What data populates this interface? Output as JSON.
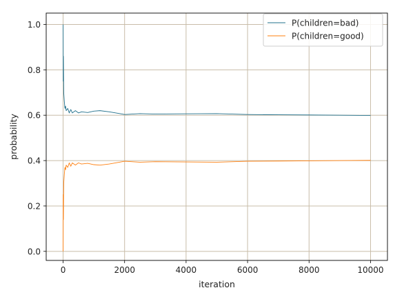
{
  "chart_data": {
    "type": "line",
    "xlabel": "iteration",
    "ylabel": "probability",
    "xlim": [
      -550,
      10550
    ],
    "ylim": [
      -0.04,
      1.05
    ],
    "x_ticks": [
      0,
      2000,
      4000,
      6000,
      8000,
      10000
    ],
    "x_tick_labels": [
      "0",
      "2000",
      "4000",
      "6000",
      "8000",
      "10000"
    ],
    "y_ticks": [
      0.0,
      0.2,
      0.4,
      0.6,
      0.8,
      1.0
    ],
    "y_tick_labels": [
      "0.0",
      "0.2",
      "0.4",
      "0.6",
      "0.8",
      "1.0"
    ],
    "grid": true,
    "legend_position": "top-right",
    "series": [
      {
        "name": "P(children=bad)",
        "color": "#1f6f8b",
        "points": [
          [
            0,
            1.0
          ],
          [
            5,
            0.75
          ],
          [
            10,
            0.86
          ],
          [
            20,
            0.7
          ],
          [
            40,
            0.66
          ],
          [
            60,
            0.63
          ],
          [
            80,
            0.64
          ],
          [
            100,
            0.62
          ],
          [
            150,
            0.63
          ],
          [
            200,
            0.61
          ],
          [
            250,
            0.625
          ],
          [
            300,
            0.61
          ],
          [
            400,
            0.62
          ],
          [
            500,
            0.61
          ],
          [
            600,
            0.615
          ],
          [
            800,
            0.612
          ],
          [
            1000,
            0.618
          ],
          [
            1200,
            0.62
          ],
          [
            1500,
            0.615
          ],
          [
            1800,
            0.608
          ],
          [
            2000,
            0.603
          ],
          [
            2500,
            0.607
          ],
          [
            3000,
            0.605
          ],
          [
            4000,
            0.606
          ],
          [
            5000,
            0.607
          ],
          [
            6000,
            0.603
          ],
          [
            7000,
            0.602
          ],
          [
            8000,
            0.601
          ],
          [
            9000,
            0.6
          ],
          [
            10000,
            0.599
          ]
        ]
      },
      {
        "name": "P(children=good)",
        "color": "#ff7f0e",
        "points": [
          [
            0,
            0.0
          ],
          [
            5,
            0.25
          ],
          [
            10,
            0.14
          ],
          [
            20,
            0.3
          ],
          [
            40,
            0.34
          ],
          [
            60,
            0.37
          ],
          [
            80,
            0.36
          ],
          [
            100,
            0.38
          ],
          [
            150,
            0.37
          ],
          [
            200,
            0.39
          ],
          [
            250,
            0.375
          ],
          [
            300,
            0.39
          ],
          [
            400,
            0.38
          ],
          [
            500,
            0.39
          ],
          [
            600,
            0.385
          ],
          [
            800,
            0.388
          ],
          [
            1000,
            0.382
          ],
          [
            1200,
            0.38
          ],
          [
            1500,
            0.385
          ],
          [
            1800,
            0.392
          ],
          [
            2000,
            0.397
          ],
          [
            2500,
            0.393
          ],
          [
            3000,
            0.395
          ],
          [
            4000,
            0.394
          ],
          [
            5000,
            0.393
          ],
          [
            6000,
            0.397
          ],
          [
            7000,
            0.398
          ],
          [
            8000,
            0.399
          ],
          [
            9000,
            0.4
          ],
          [
            10000,
            0.401
          ]
        ]
      }
    ]
  }
}
